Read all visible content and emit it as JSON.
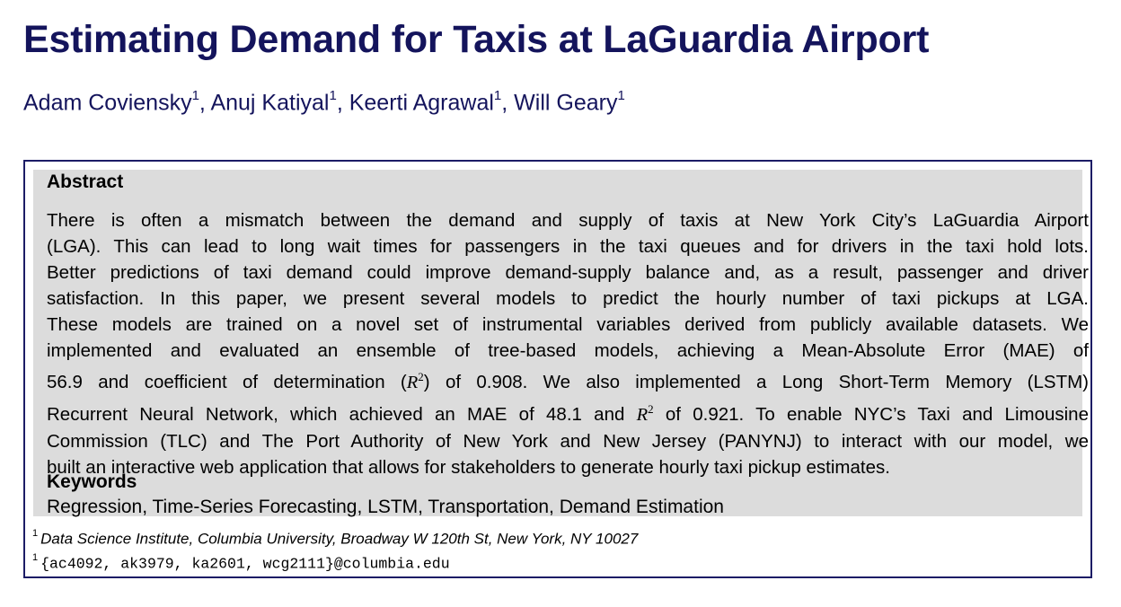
{
  "title": "Estimating Demand for Taxis at LaGuardia Airport",
  "authors": [
    {
      "name": "Adam Coviensky",
      "mark": "1",
      "sep": ", "
    },
    {
      "name": "Anuj Katiyal",
      "mark": "1",
      "sep": ", "
    },
    {
      "name": "Keerti Agrawal",
      "mark": "1",
      "sep": ", "
    },
    {
      "name": "Will Geary",
      "mark": "1",
      "sep": ""
    }
  ],
  "abstract": {
    "heading": "Abstract",
    "lines": [
      "There is often a mismatch between the demand and supply of taxis at New York City’s LaGuardia Airport",
      "(LGA). This can lead to long wait times for passengers in the taxi queues and for drivers in the taxi hold lots.",
      "Better predictions of taxi demand could improve demand-supply balance and, as a result, passenger and driver",
      "satisfaction.  In this paper, we present several models to predict the hourly number of taxi pickups at LGA.",
      "These models are trained on a novel set of instrumental variables derived from publicly available datasets. We",
      "implemented and evaluated an ensemble of tree-based models, achieving a Mean-Absolute Error (MAE) of"
    ],
    "line7": {
      "before": "56.9 and coefficient of determination (",
      "symbol": "R",
      "power": "2",
      "after": ") of 0.908. We also implemented a Long Short-Term Memory (LSTM)"
    },
    "line8": {
      "before": "Recurrent Neural Network, which achieved an MAE of 48.1 and ",
      "symbol": "R",
      "power": "2",
      "after": " of 0.921. To enable NYC’s Taxi and Limousine"
    },
    "lines_end": [
      "Commission (TLC) and The Port Authority of New York and New Jersey (PANYNJ) to interact with our model, we",
      "built an interactive web application that allows for stakeholders to generate hourly taxi pickup estimates."
    ]
  },
  "keywords": {
    "heading": "Keywords",
    "text": "Regression, Time-Series Forecasting, LSTM, Transportation, Demand Estimation"
  },
  "affiliation": {
    "mark": "1",
    "text": "Data Science Institute, Columbia University, Broadway W 120th St, New York, NY 10027"
  },
  "email": {
    "mark": "1",
    "text": "{ac4092, ak3979, ka2601, wcg2111}@columbia.edu"
  },
  "colors": {
    "title": "#14145c",
    "box_border": "#1c1c66",
    "shade": "#dcdcdc"
  }
}
